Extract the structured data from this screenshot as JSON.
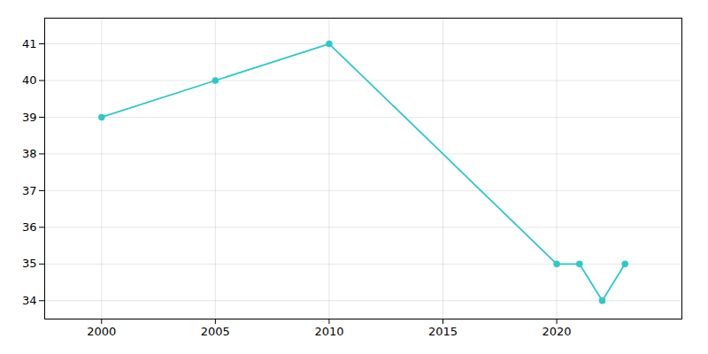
{
  "chart_data": {
    "type": "line",
    "x": [
      2000,
      2005,
      2010,
      2020,
      2021,
      2022,
      2023
    ],
    "values": [
      39,
      40,
      41,
      35,
      35,
      34,
      35
    ],
    "color": "#2ec8c8",
    "marker": "circle",
    "xlim": [
      1997.5,
      2025.5
    ],
    "xticks": [
      2000,
      2005,
      2010,
      2015,
      2020
    ],
    "ylim": [
      33.5,
      41.7
    ],
    "yticks": [
      34,
      35,
      36,
      37,
      38,
      39,
      40,
      41
    ],
    "grid": true
  }
}
